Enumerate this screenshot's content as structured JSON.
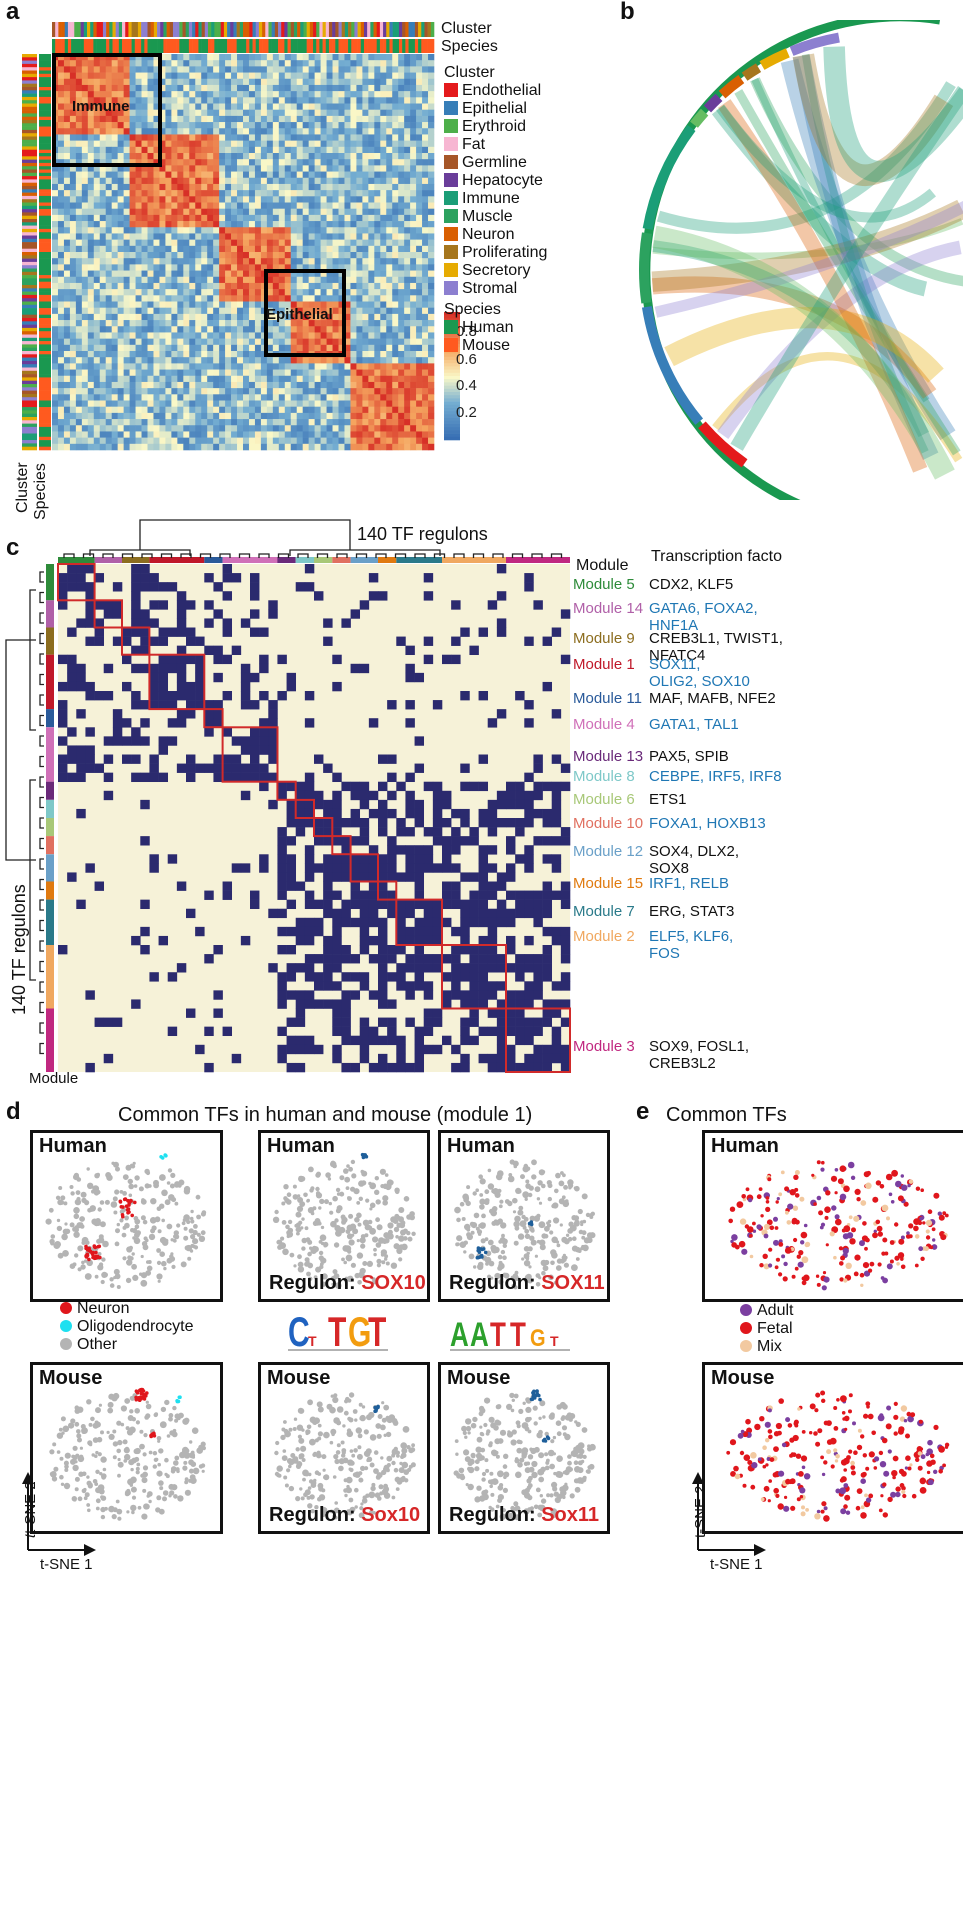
{
  "panel_labels": {
    "a": "a",
    "b": "b",
    "c": "c",
    "d": "d",
    "e": "e"
  },
  "panel_a": {
    "top_labels": [
      "Cluster",
      "Species"
    ],
    "left_labels": [
      "Cluster",
      "Species"
    ],
    "boxes": [
      "Immune",
      "Epithelial"
    ],
    "legend_cluster_title": "Cluster",
    "clusters": [
      {
        "name": "Endothelial",
        "color": "#e41a1c"
      },
      {
        "name": "Epithelial",
        "color": "#377eb8"
      },
      {
        "name": "Erythroid",
        "color": "#4daf4a"
      },
      {
        "name": "Fat",
        "color": "#f7b6d2"
      },
      {
        "name": "Germline",
        "color": "#a65628"
      },
      {
        "name": "Hepatocyte",
        "color": "#6a3d9a"
      },
      {
        "name": "Immune",
        "color": "#1b9e77"
      },
      {
        "name": "Muscle",
        "color": "#2ca25f"
      },
      {
        "name": "Neuron",
        "color": "#d95f02"
      },
      {
        "name": "Proliferating",
        "color": "#a6761d"
      },
      {
        "name": "Secretory",
        "color": "#e6ab02"
      },
      {
        "name": "Stromal",
        "color": "#8c7fd0"
      }
    ],
    "legend_species_title": "Species",
    "species": [
      {
        "name": "Human",
        "color": "#1a9850"
      },
      {
        "name": "Mouse",
        "color": "#ff5a1f"
      }
    ],
    "colorbar_ticks": [
      "0.8",
      "0.6",
      "0.4",
      "0.2"
    ]
  },
  "panel_c": {
    "top_title": "140 TF regulons",
    "left_title": "140 TF regulons",
    "module_header": "Module",
    "tf_header": "Transcription facto",
    "bottom_label": "Module",
    "modules": [
      {
        "name": "Module 5",
        "color": "#2e8b3a",
        "tfs": [
          "CDX2, KLF5"
        ],
        "tf_color": "#111"
      },
      {
        "name": "Module 14",
        "color": "#b060a8",
        "tfs": [
          "GATA6, FOXA2,",
          "HNF1A"
        ],
        "tf_color": "#1f77b4"
      },
      {
        "name": "Module 9",
        "color": "#8c6d1f",
        "tfs": [
          "CREB3L1, TWIST1,",
          "NFATC4"
        ],
        "tf_color": "#111"
      },
      {
        "name": "Module 1",
        "color": "#c0182a",
        "tfs": [
          "SOX11,",
          "OLIG2, SOX10"
        ],
        "tf_color": "#1f77b4"
      },
      {
        "name": "Module 11",
        "color": "#2a5a9a",
        "tfs": [
          "MAF, MAFB, NFE2"
        ],
        "tf_color": "#111"
      },
      {
        "name": "Module 4",
        "color": "#d070b8",
        "tfs": [
          "GATA1, TAL1"
        ],
        "tf_color": "#1f77b4"
      },
      {
        "name": "Module 13",
        "color": "#6a2a7a",
        "tfs": [
          "PAX5, SPIB"
        ],
        "tf_color": "#111"
      },
      {
        "name": "Module 8",
        "color": "#7ec8c8",
        "tfs": [
          "CEBPE, IRF5, IRF8"
        ],
        "tf_color": "#1f77b4"
      },
      {
        "name": "Module 6",
        "color": "#a8c878",
        "tfs": [
          "ETS1"
        ],
        "tf_color": "#111"
      },
      {
        "name": "Module 10",
        "color": "#e07060",
        "tfs": [
          "FOXA1, HOXB13"
        ],
        "tf_color": "#1f77b4"
      },
      {
        "name": "Module 12",
        "color": "#6aa0c8",
        "tfs": [
          "SOX4, DLX2,",
          "SOX8"
        ],
        "tf_color": "#111"
      },
      {
        "name": "Module 15",
        "color": "#e07a10",
        "tfs": [
          "IRF1, RELB"
        ],
        "tf_color": "#1f77b4"
      },
      {
        "name": "Module 7",
        "color": "#2a7a8a",
        "tfs": [
          "ERG, STAT3"
        ],
        "tf_color": "#111"
      },
      {
        "name": "Module 2",
        "color": "#f0a860",
        "tfs": [
          "ELF5, KLF6,",
          "FOS"
        ],
        "tf_color": "#1f77b4"
      },
      {
        "name": "Module 3",
        "color": "#c02880",
        "tfs": [
          "SOX9, FOSL1,",
          "CREB3L2"
        ],
        "tf_color": "#111"
      }
    ]
  },
  "panel_d": {
    "title": "Common TFs in human and mouse (module 1)",
    "human": "Human",
    "mouse": "Mouse",
    "regulon_prefix": "Regulon: ",
    "regulons": [
      "SOX10",
      "SOX11",
      "Sox10",
      "Sox11"
    ],
    "legend": [
      {
        "name": "Neuron",
        "color": "#e0161c"
      },
      {
        "name": "Oligodendrocyte",
        "color": "#1ee0f0"
      },
      {
        "name": "Other",
        "color": "#b4b4b4"
      }
    ],
    "axis_y": "t-SNE 2",
    "axis_x": "t-SNE 1"
  },
  "panel_e": {
    "title": "Common TFs",
    "human": "Human",
    "mouse": "Mouse",
    "legend": [
      {
        "name": "Adult",
        "color": "#7b3fa0"
      },
      {
        "name": "Fetal",
        "color": "#e0161c"
      },
      {
        "name": "Mix",
        "color": "#f2c9a0"
      }
    ],
    "axis_y": "t-SNE 2",
    "axis_x": "t-SNE 1"
  }
}
